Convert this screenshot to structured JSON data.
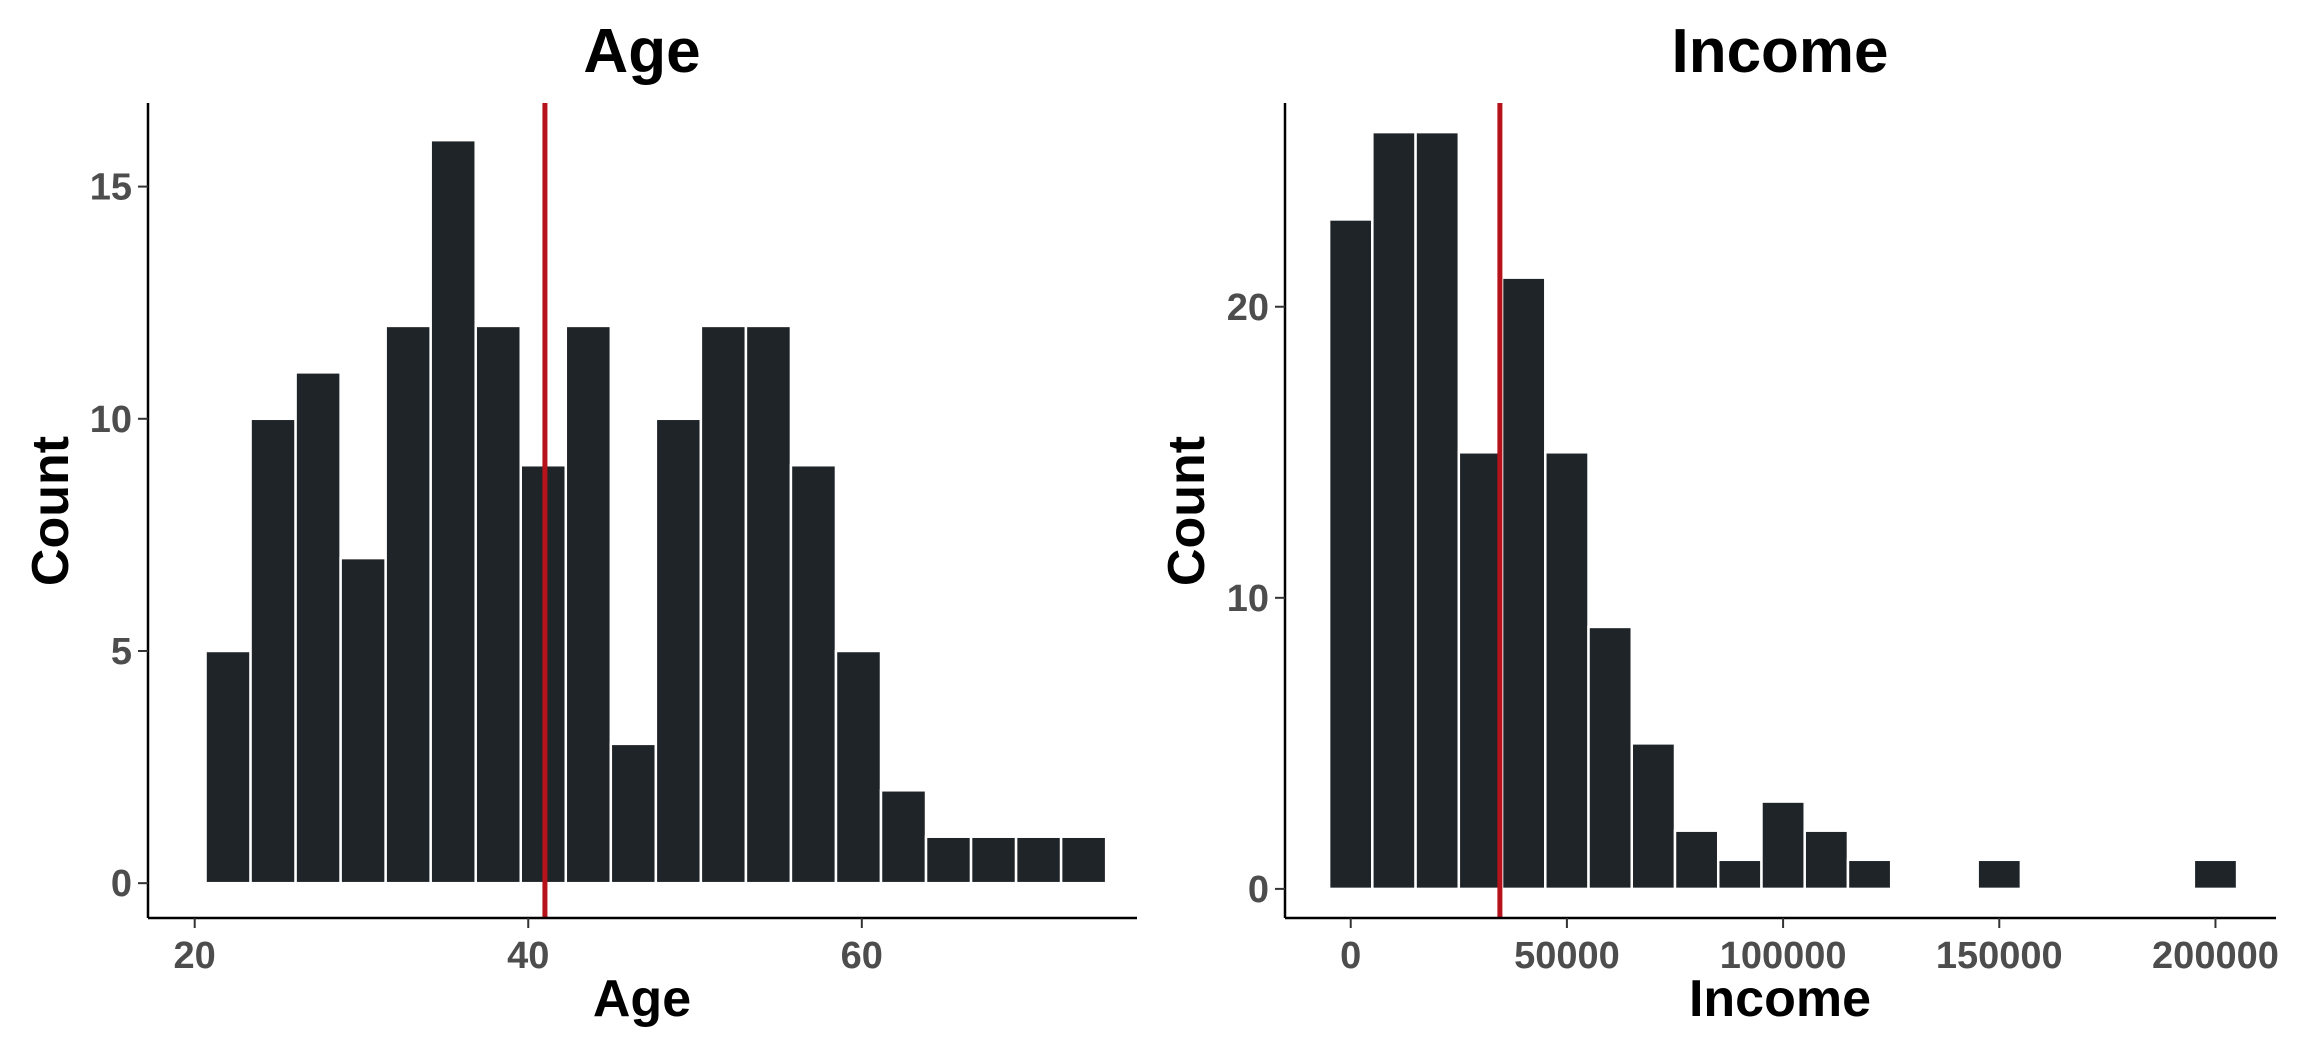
{
  "chart_data": [
    {
      "type": "bar",
      "title": "Age",
      "xlabel": "Age",
      "ylabel": "Count",
      "bar_color": "#1f2428",
      "bar_edge_color": "#ffffff",
      "vline_color": "#b5121b",
      "vline": 41,
      "xlim": [
        17.2,
        76.5
      ],
      "ylim": [
        -0.75,
        16.8
      ],
      "x_ticks": [
        20,
        40,
        60
      ],
      "y_ticks": [
        0,
        5,
        10,
        15
      ],
      "bin_width": 2.7,
      "bin_centers": [
        22.0,
        24.7,
        27.4,
        30.1,
        32.8,
        35.5,
        38.2,
        40.9,
        43.6,
        46.3,
        49.0,
        51.7,
        54.4,
        57.1,
        59.8,
        62.5,
        65.2,
        67.9,
        70.6,
        73.3
      ],
      "values": [
        5,
        10,
        11,
        7,
        12,
        16,
        12,
        9,
        12,
        3,
        10,
        12,
        12,
        9,
        5,
        2,
        1,
        1,
        1,
        1
      ],
      "grid": false,
      "legend": "none"
    },
    {
      "type": "bar",
      "title": "Income",
      "xlabel": "Income",
      "ylabel": "Count",
      "bar_color": "#1f2428",
      "bar_edge_color": "#ffffff",
      "vline_color": "#b5121b",
      "vline": 34500,
      "xlim": [
        -15200,
        214000
      ],
      "ylim": [
        -1.0,
        27.0
      ],
      "x_ticks": [
        0,
        50000,
        100000,
        150000,
        200000
      ],
      "y_ticks": [
        0,
        10,
        20
      ],
      "bin_width": 10000,
      "bin_centers": [
        0,
        10000,
        20000,
        30000,
        40000,
        50000,
        60000,
        70000,
        80000,
        90000,
        100000,
        110000,
        120000,
        130000,
        140000,
        150000,
        160000,
        170000,
        180000,
        190000,
        200000
      ],
      "values": [
        23,
        26,
        26,
        15,
        21,
        15,
        9,
        5,
        2,
        1,
        3,
        2,
        1,
        0,
        0,
        1,
        0,
        0,
        0,
        0,
        1
      ],
      "grid": false,
      "legend": "none"
    }
  ]
}
